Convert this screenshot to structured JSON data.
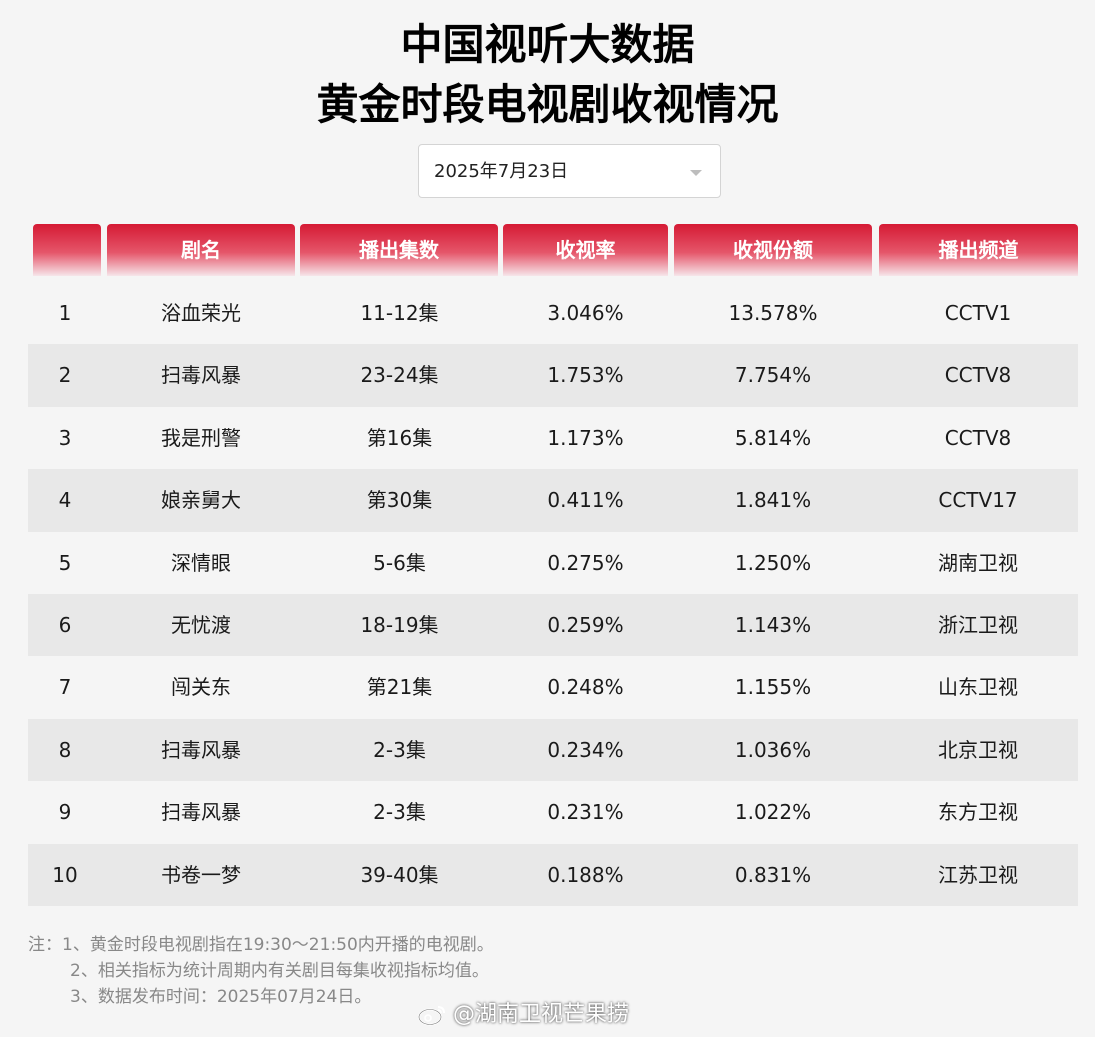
{
  "title": {
    "line1": "中国视听大数据",
    "line2": "黄金时段电视剧收视情况"
  },
  "date_select": {
    "value": "2025年7月23日",
    "icon": "chevron-down-icon"
  },
  "table": {
    "headers": [
      "",
      "剧名",
      "播出集数",
      "收视率",
      "收视份额",
      "播出频道"
    ],
    "rows": [
      [
        "1",
        "浴血荣光",
        "11-12集",
        "3.046%",
        "13.578%",
        "CCTV1"
      ],
      [
        "2",
        "扫毒风暴",
        "23-24集",
        "1.753%",
        "7.754%",
        "CCTV8"
      ],
      [
        "3",
        "我是刑警",
        "第16集",
        "1.173%",
        "5.814%",
        "CCTV8"
      ],
      [
        "4",
        "娘亲舅大",
        "第30集",
        "0.411%",
        "1.841%",
        "CCTV17"
      ],
      [
        "5",
        "深情眼",
        "5-6集",
        "0.275%",
        "1.250%",
        "湖南卫视"
      ],
      [
        "6",
        "无忧渡",
        "18-19集",
        "0.259%",
        "1.143%",
        "浙江卫视"
      ],
      [
        "7",
        "闯关东",
        "第21集",
        "0.248%",
        "1.155%",
        "山东卫视"
      ],
      [
        "8",
        "扫毒风暴",
        "2-3集",
        "0.234%",
        "1.036%",
        "北京卫视"
      ],
      [
        "9",
        "扫毒风暴",
        "2-3集",
        "0.231%",
        "1.022%",
        "东方卫视"
      ],
      [
        "10",
        "书卷一梦",
        "39-40集",
        "0.188%",
        "0.831%",
        "江苏卫视"
      ]
    ]
  },
  "notes": {
    "line1": "注：1、黄金时段电视剧指在19:30～21:50内开播的电视剧。",
    "line2": "2、相关指标为统计周期内有关剧目每集收视指标均值。",
    "line3": "3、数据发布时间：2025年07月24日。"
  },
  "watermark": {
    "text": "@湖南卫视芒果捞",
    "icon": "weibo-icon"
  },
  "colors": {
    "header_top": "#d51a34",
    "header_bottom": "#f6e6ea",
    "row_alt": "#e8e8e8",
    "background": "#f5f5f5"
  }
}
